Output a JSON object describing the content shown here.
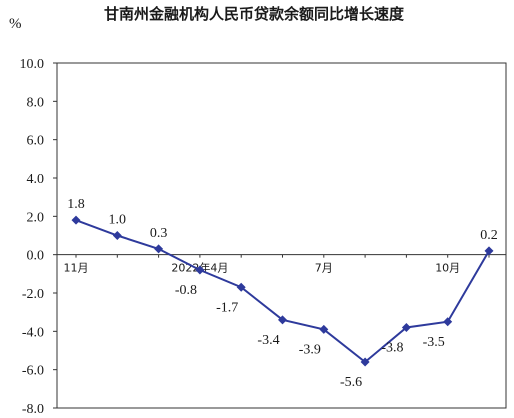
{
  "chart_data": {
    "type": "line",
    "title": "甘南州金融机构人民币贷款余额同比增长速度",
    "ylabel": "%",
    "ylim": [
      -8,
      10
    ],
    "yticks": [
      "10.0",
      "8.0",
      "6.0",
      "4.0",
      "2.0",
      "0.0",
      "-2.0",
      "-4.0",
      "-6.0",
      "-8.0"
    ],
    "xtick_labels": [
      {
        "label": "11月",
        "index": 0
      },
      {
        "label": "2022年4月",
        "index": 3
      },
      {
        "label": "7月",
        "index": 6
      },
      {
        "label": "10月",
        "index": 9
      }
    ],
    "series": [
      {
        "values": [
          1.8,
          1.0,
          0.3,
          -0.8,
          -1.7,
          -3.4,
          -3.9,
          -5.6,
          -3.8,
          -3.5,
          0.2
        ],
        "labels": [
          "1.8",
          "1.0",
          "0.3",
          "-0.8",
          "-1.7",
          "-3.4",
          "-3.9",
          "-5.6",
          "-3.8",
          "-3.5",
          "0.2"
        ],
        "color": "#2e3a9c"
      }
    ],
    "grid": false,
    "legend": "none"
  }
}
